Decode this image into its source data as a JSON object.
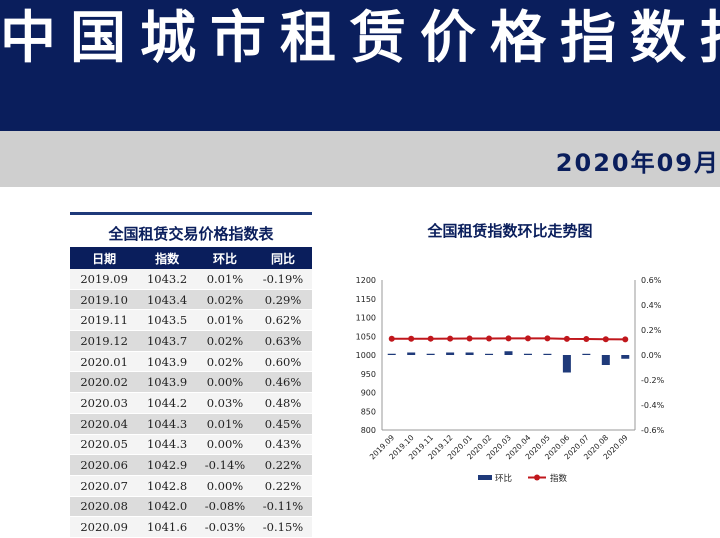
{
  "header": {
    "title": "中国城市租赁价格指数报告",
    "date": "2020年09月"
  },
  "table": {
    "title": "全国租赁交易价格指数表",
    "columns": [
      "日期",
      "指数",
      "环比",
      "同比"
    ],
    "rows": [
      [
        "2019.09",
        "1043.2",
        "0.01%",
        "-0.19%"
      ],
      [
        "2019.10",
        "1043.4",
        "0.02%",
        "0.29%"
      ],
      [
        "2019.11",
        "1043.5",
        "0.01%",
        "0.62%"
      ],
      [
        "2019.12",
        "1043.7",
        "0.02%",
        "0.63%"
      ],
      [
        "2020.01",
        "1043.9",
        "0.02%",
        "0.60%"
      ],
      [
        "2020.02",
        "1043.9",
        "0.00%",
        "0.46%"
      ],
      [
        "2020.03",
        "1044.2",
        "0.03%",
        "0.48%"
      ],
      [
        "2020.04",
        "1044.3",
        "0.01%",
        "0.45%"
      ],
      [
        "2020.05",
        "1044.3",
        "0.00%",
        "0.43%"
      ],
      [
        "2020.06",
        "1042.9",
        "-0.14%",
        "0.22%"
      ],
      [
        "2020.07",
        "1042.8",
        "0.00%",
        "0.22%"
      ],
      [
        "2020.08",
        "1042.0",
        "-0.08%",
        "-0.11%"
      ],
      [
        "2020.09",
        "1041.6",
        "-0.03%",
        "-0.15%"
      ]
    ]
  },
  "chart_data": {
    "type": "bar",
    "title": "全国租赁指数环比走势图",
    "categories": [
      "2019.09",
      "2019.10",
      "2019.11",
      "2019.12",
      "2020.01",
      "2020.02",
      "2020.03",
      "2020.04",
      "2020.05",
      "2020.06",
      "2020.07",
      "2020.08",
      "2020.09"
    ],
    "series": [
      {
        "name": "环比",
        "type": "bar",
        "axis": "right",
        "color": "#1f3a7a",
        "values": [
          0.01,
          0.02,
          0.01,
          0.02,
          0.02,
          0.0,
          0.03,
          0.01,
          0.0,
          -0.14,
          0.0,
          -0.08,
          -0.03
        ]
      },
      {
        "name": "指数",
        "type": "line",
        "axis": "left",
        "color": "#c0171c",
        "values": [
          1043.2,
          1043.4,
          1043.5,
          1043.7,
          1043.9,
          1043.9,
          1044.2,
          1044.3,
          1044.3,
          1042.9,
          1042.8,
          1042.0,
          1041.6
        ]
      }
    ],
    "ylim_left": [
      800,
      1200
    ],
    "yticks_left": [
      "1200",
      "1150",
      "1100",
      "1050",
      "1000",
      "950",
      "900",
      "850",
      "800"
    ],
    "ylim_right": [
      -0.6,
      0.6
    ],
    "yticks_right": [
      "0.6%",
      "0.4%",
      "0.2%",
      "0.0%",
      "-0.2%",
      "-0.4%",
      "-0.6%"
    ],
    "grid": false,
    "legend": "bottom"
  }
}
